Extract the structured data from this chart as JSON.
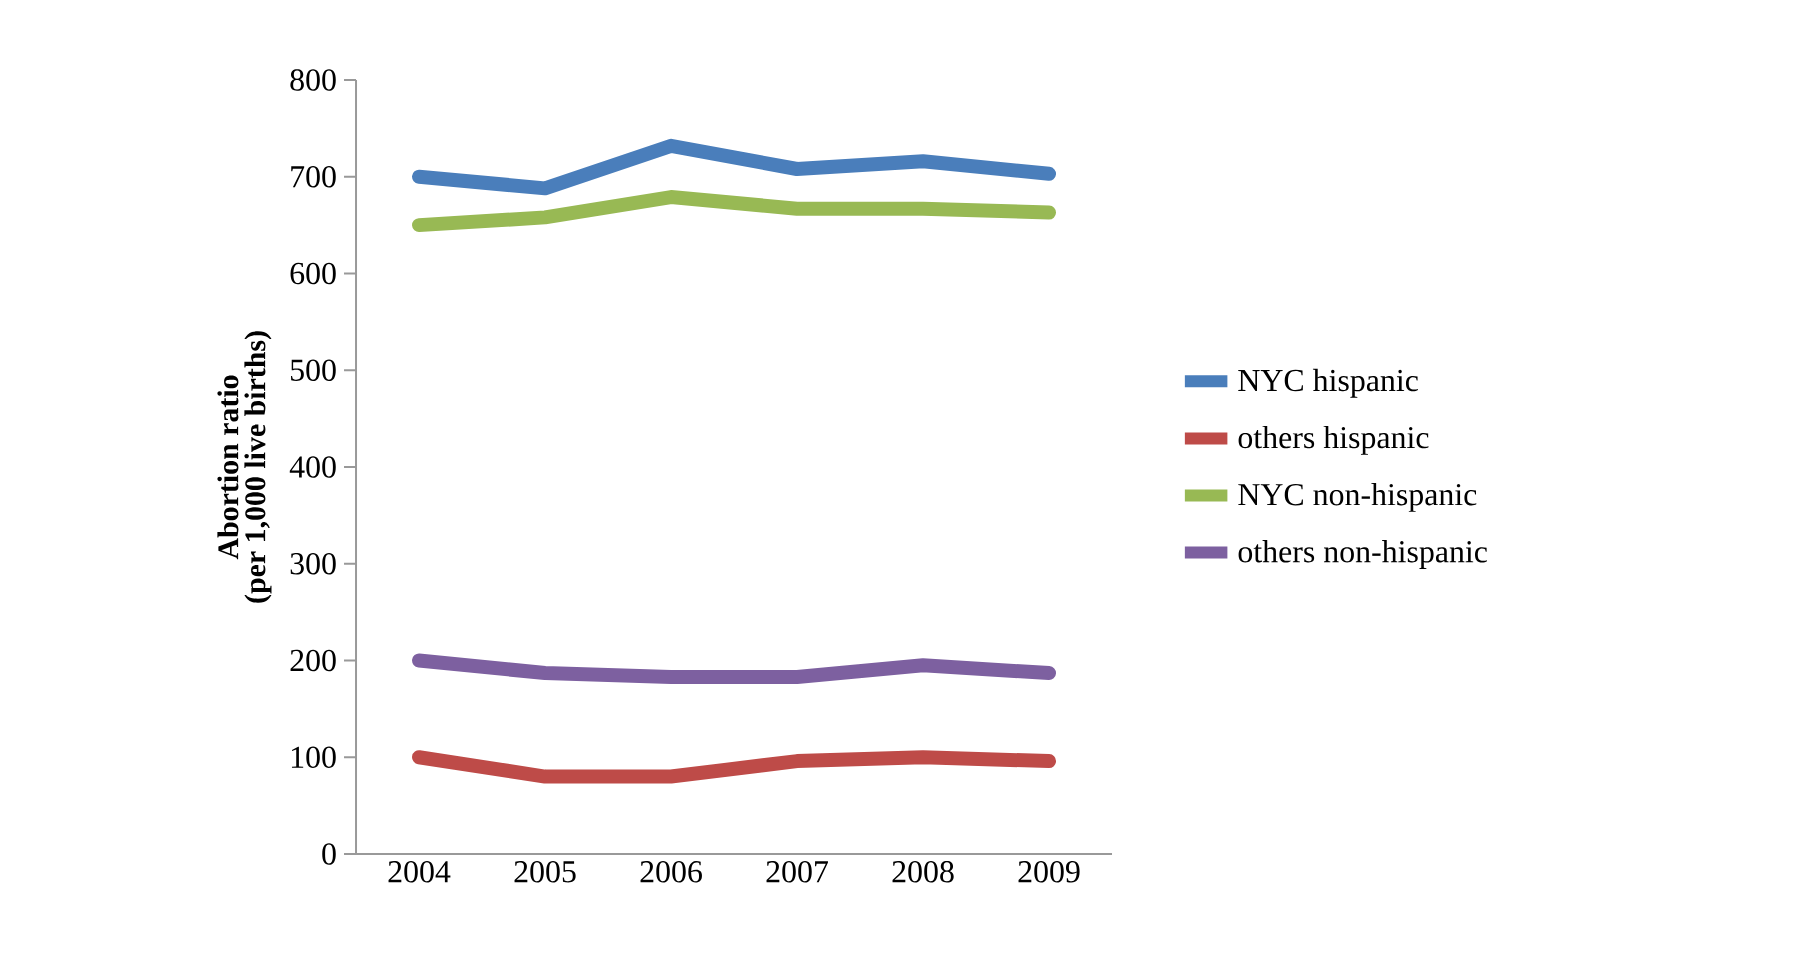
{
  "chart_data": {
    "type": "line",
    "ylabel": "**Abortion ratio**",
    "y2label": "**(per 1,000 live births)**",
    "categories": [
      "2004",
      "2005",
      "2006",
      "2007",
      "2008",
      "2009"
    ],
    "series": [
      {
        "name": "NYC hispanic",
        "color": "#4a7ebb",
        "values": [
          700,
          688,
          732,
          708,
          716,
          703
        ]
      },
      {
        "name": "others hispanic",
        "color": "#be4b48",
        "values": [
          100,
          80,
          80,
          96,
          100,
          96
        ]
      },
      {
        "name": "NYC non-hispanic",
        "color": "#98b954",
        "values": [
          650,
          658,
          679,
          667,
          667,
          663
        ]
      },
      {
        "name": "others non-hispanic",
        "color": "#7d60a0",
        "values": [
          200,
          187,
          183,
          183,
          195,
          187
        ]
      }
    ],
    "ylim": [
      0,
      800
    ],
    "yticks": [
      0,
      100,
      200,
      300,
      400,
      500,
      600,
      700,
      800
    ],
    "grid": false,
    "legend": "right",
    "marker": "none",
    "line_style": "solid"
  }
}
